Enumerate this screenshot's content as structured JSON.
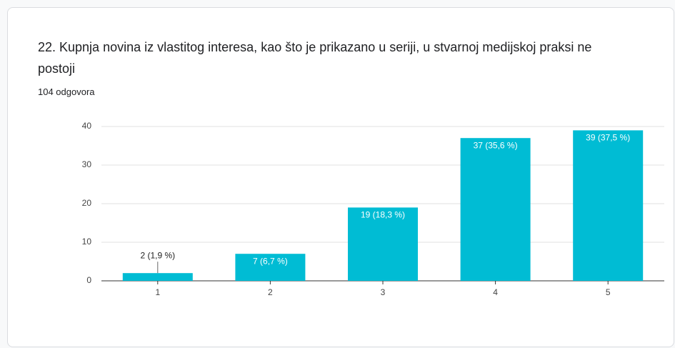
{
  "chart_data": {
    "type": "bar",
    "title": "22. Kupnja novina iz vlastitog interesa, kao što je prikazano u seriji, u stvarnoj medijskoj praksi ne postoji",
    "subtitle": "104 odgovora",
    "categories": [
      "1",
      "2",
      "3",
      "4",
      "5"
    ],
    "values": [
      2,
      7,
      19,
      37,
      39
    ],
    "value_labels": [
      "2 (1,9 %)",
      "7 (6,7 %)",
      "19 (18,3 %)",
      "37 (35,6 %)",
      "39 (37,5 %)"
    ],
    "color": "#00bcd4",
    "ylim": [
      0,
      40
    ],
    "yticks": [
      0,
      10,
      20,
      30,
      40
    ],
    "grid": true
  }
}
